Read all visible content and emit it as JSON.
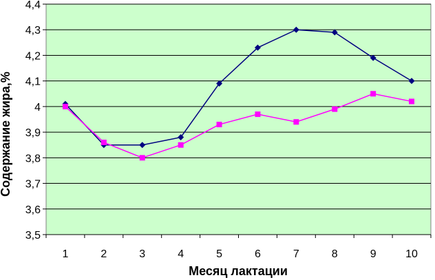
{
  "chart_data": {
    "type": "line",
    "title": "",
    "xlabel": "Месяц лактации",
    "ylabel": "Содержание жира,%",
    "x": [
      1,
      2,
      3,
      4,
      5,
      6,
      7,
      8,
      9,
      10
    ],
    "x_tick_labels": [
      "1",
      "2",
      "3",
      "4",
      "5",
      "6",
      "7",
      "8",
      "9",
      "10"
    ],
    "ylim": [
      3.5,
      4.4
    ],
    "y_ticks": [
      3.5,
      3.6,
      3.7,
      3.8,
      3.9,
      4.0,
      4.1,
      4.2,
      4.3,
      4.4
    ],
    "y_tick_labels": [
      "3,5",
      "3,6",
      "3,7",
      "3,8",
      "3,9",
      "4",
      "4,1",
      "4,2",
      "4,3",
      "4,4"
    ],
    "grid": true,
    "legend": "none",
    "plot_background": "#ccffcc",
    "series": [
      {
        "marker": "diamond",
        "color": "#000080",
        "values": [
          4.01,
          3.85,
          3.85,
          3.88,
          4.09,
          4.23,
          4.3,
          4.29,
          4.19,
          4.1
        ]
      },
      {
        "marker": "square",
        "color": "#ff00ff",
        "values": [
          4.0,
          3.86,
          3.8,
          3.85,
          3.93,
          3.97,
          3.94,
          3.99,
          4.05,
          4.02
        ]
      }
    ]
  }
}
